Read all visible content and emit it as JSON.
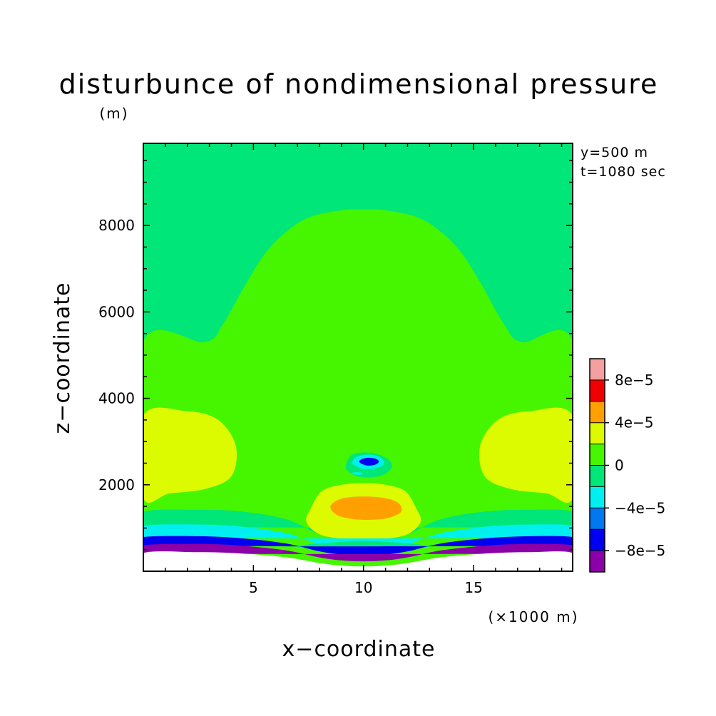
{
  "chart_data": {
    "type": "heatmap",
    "title": "disturbunce of nondimensional pressure",
    "xlabel": "x−coordinate",
    "ylabel": "z−coordinate",
    "x_unit": "(×1000 m)",
    "y_unit": "(m)",
    "annotations": [
      "y=500 m",
      "t=1080 sec"
    ],
    "xlim": [
      0,
      19.5
    ],
    "ylim": [
      0,
      9900
    ],
    "x_ticks": [
      5,
      10,
      15
    ],
    "x_tick_labels": [
      "5",
      "10",
      "15"
    ],
    "y_ticks": [
      2000,
      4000,
      6000,
      8000
    ],
    "y_tick_labels": [
      "2000",
      "4000",
      "6000",
      "8000"
    ],
    "legend": {
      "position": "right",
      "bounds": [
        -0.0001,
        -8e-05,
        -6e-05,
        -4e-05,
        -2e-05,
        0,
        2e-05,
        4e-05,
        6e-05,
        8e-05,
        0.0001
      ],
      "colors": [
        "#8c00a8",
        "#0000f0",
        "#0078f0",
        "#00f0f0",
        "#00e678",
        "#46f500",
        "#dcfa00",
        "#ffa000",
        "#f00000",
        "#f5a0a0"
      ],
      "labels": [
        {
          "value": -8e-05,
          "text": "−8e−5"
        },
        {
          "value": -4e-05,
          "text": "−4e−5"
        },
        {
          "value": 0,
          "text": "0"
        },
        {
          "value": 4e-05,
          "text": "4e−5"
        },
        {
          "value": 8e-05,
          "text": "8e−5"
        }
      ]
    },
    "regions": [
      {
        "name": "upper-cyan",
        "level": -2e-05,
        "points": [
          [
            0,
            5300
          ],
          [
            0,
            9900
          ],
          [
            19.5,
            9900
          ],
          [
            19.5,
            5300
          ]
        ]
      },
      {
        "name": "green-dome",
        "level": 0,
        "points": [
          [
            0,
            1300
          ],
          [
            0,
            5300
          ],
          [
            2.8,
            5300
          ],
          [
            3.6,
            5700
          ],
          [
            4.6,
            6600
          ],
          [
            5.6,
            7400
          ],
          [
            6.6,
            7900
          ],
          [
            7.6,
            8200
          ],
          [
            9.0,
            8350
          ],
          [
            10.0,
            8370
          ],
          [
            11.0,
            8350
          ],
          [
            12.4,
            8200
          ],
          [
            13.4,
            7900
          ],
          [
            14.4,
            7400
          ],
          [
            15.4,
            6600
          ],
          [
            16.4,
            5700
          ],
          [
            17.2,
            5300
          ],
          [
            19.5,
            5300
          ],
          [
            19.5,
            1300
          ]
        ]
      },
      {
        "name": "left-lime",
        "level": 2e-05,
        "points": [
          [
            0,
            1700
          ],
          [
            0,
            3600
          ],
          [
            2.0,
            3700
          ],
          [
            3.4,
            3500
          ],
          [
            4.2,
            2900
          ],
          [
            4.0,
            2200
          ],
          [
            2.8,
            1900
          ],
          [
            1.2,
            1800
          ]
        ]
      },
      {
        "name": "right-lime",
        "level": 2e-05,
        "points": [
          [
            19.5,
            1700
          ],
          [
            19.5,
            3600
          ],
          [
            17.5,
            3700
          ],
          [
            16.1,
            3500
          ],
          [
            15.3,
            2900
          ],
          [
            15.5,
            2200
          ],
          [
            16.7,
            1900
          ],
          [
            18.3,
            1800
          ]
        ]
      },
      {
        "name": "lower-cyan-band",
        "level": -2e-05,
        "points": [
          [
            0,
            1050
          ],
          [
            0,
            1380
          ],
          [
            2.5,
            1420
          ],
          [
            4.5,
            1380
          ],
          [
            6.5,
            1200
          ],
          [
            8.0,
            850
          ],
          [
            9.0,
            740
          ],
          [
            10.0,
            720
          ],
          [
            11.0,
            740
          ],
          [
            12.0,
            850
          ],
          [
            13.5,
            1200
          ],
          [
            15.5,
            1380
          ],
          [
            17.5,
            1420
          ],
          [
            19.5,
            1380
          ],
          [
            19.5,
            1050
          ]
        ]
      },
      {
        "name": "center-lime-core",
        "level": 2e-05,
        "points": [
          [
            7.6,
            1450
          ],
          [
            7.4,
            1150
          ],
          [
            7.9,
            880
          ],
          [
            8.8,
            760
          ],
          [
            10.0,
            740
          ],
          [
            11.2,
            760
          ],
          [
            12.1,
            880
          ],
          [
            12.6,
            1150
          ],
          [
            12.4,
            1450
          ],
          [
            11.9,
            1850
          ],
          [
            11.0,
            2000
          ],
          [
            10.0,
            2040
          ],
          [
            9.0,
            2000
          ],
          [
            8.1,
            1850
          ]
        ]
      },
      {
        "name": "center-yellow-core",
        "level": 4e-05,
        "points": [
          [
            8.5,
            1500
          ],
          [
            8.8,
            1300
          ],
          [
            9.5,
            1210
          ],
          [
            10.3,
            1190
          ],
          [
            11.1,
            1230
          ],
          [
            11.7,
            1370
          ],
          [
            11.6,
            1570
          ],
          [
            11.0,
            1690
          ],
          [
            10.0,
            1730
          ],
          [
            9.0,
            1680
          ]
        ]
      },
      {
        "name": "blue-band",
        "level": -4e-05,
        "points": [
          [
            0,
            790
          ],
          [
            0,
            1050
          ],
          [
            2.5,
            1080
          ],
          [
            4.5,
            1030
          ],
          [
            6.5,
            880
          ],
          [
            8.0,
            620
          ],
          [
            9.0,
            530
          ],
          [
            10.0,
            510
          ],
          [
            11.0,
            530
          ],
          [
            12.0,
            620
          ],
          [
            13.5,
            880
          ],
          [
            15.5,
            1030
          ],
          [
            17.5,
            1080
          ],
          [
            19.5,
            1050
          ],
          [
            19.5,
            790
          ]
        ]
      },
      {
        "name": "cyan-inner-band",
        "level": -2e-05,
        "points": [
          [
            7.0,
            560
          ],
          [
            8.0,
            580
          ],
          [
            9.0,
            540
          ],
          [
            10.0,
            520
          ],
          [
            11.0,
            540
          ],
          [
            12.0,
            580
          ],
          [
            13.0,
            560
          ],
          [
            12.5,
            620
          ],
          [
            11.0,
            680
          ],
          [
            10.0,
            700
          ],
          [
            9.0,
            680
          ],
          [
            7.5,
            620
          ]
        ]
      },
      {
        "name": "dark-blue-band",
        "level": -8e-05,
        "points": [
          [
            0,
            600
          ],
          [
            0,
            790
          ],
          [
            2.5,
            810
          ],
          [
            4.5,
            760
          ],
          [
            6.5,
            640
          ],
          [
            8.0,
            460
          ],
          [
            9.0,
            390
          ],
          [
            10.0,
            370
          ],
          [
            11.0,
            390
          ],
          [
            12.0,
            460
          ],
          [
            13.5,
            640
          ],
          [
            15.5,
            760
          ],
          [
            17.5,
            810
          ],
          [
            19.5,
            790
          ],
          [
            19.5,
            600
          ]
        ]
      },
      {
        "name": "purple-band",
        "level": -0.0001,
        "points": [
          [
            0,
            420
          ],
          [
            0,
            600
          ],
          [
            2.5,
            630
          ],
          [
            4.5,
            590
          ],
          [
            6.5,
            480
          ],
          [
            8.0,
            320
          ],
          [
            9.0,
            250
          ],
          [
            10.0,
            230
          ],
          [
            11.0,
            250
          ],
          [
            12.0,
            320
          ],
          [
            13.5,
            480
          ],
          [
            15.5,
            590
          ],
          [
            17.5,
            630
          ],
          [
            19.5,
            600
          ],
          [
            19.5,
            420
          ]
        ]
      },
      {
        "name": "terrain-gap",
        "level": null,
        "points": [
          [
            0,
            0
          ],
          [
            0,
            420
          ],
          [
            2.5,
            440
          ],
          [
            4.5,
            410
          ],
          [
            6.5,
            320
          ],
          [
            8.0,
            190
          ],
          [
            9.0,
            130
          ],
          [
            10.0,
            110
          ],
          [
            11.0,
            130
          ],
          [
            12.0,
            190
          ],
          [
            13.5,
            320
          ],
          [
            15.5,
            410
          ],
          [
            17.5,
            440
          ],
          [
            19.5,
            420
          ],
          [
            19.5,
            0
          ]
        ]
      },
      {
        "name": "center-cyan-cell",
        "level": -2e-05,
        "points": [
          [
            9.2,
            2400
          ],
          [
            9.6,
            2220
          ],
          [
            10.2,
            2170
          ],
          [
            10.9,
            2230
          ],
          [
            11.3,
            2430
          ],
          [
            11.0,
            2630
          ],
          [
            10.3,
            2740
          ],
          [
            9.5,
            2700
          ]
        ]
      },
      {
        "name": "center-lightblue-cell",
        "level": -4e-05,
        "points": [
          [
            9.5,
            2500
          ],
          [
            9.9,
            2380
          ],
          [
            10.4,
            2370
          ],
          [
            10.9,
            2460
          ],
          [
            10.8,
            2620
          ],
          [
            10.3,
            2700
          ],
          [
            9.7,
            2650
          ]
        ]
      },
      {
        "name": "center-blue-cell",
        "level": -8e-05,
        "points": [
          [
            9.8,
            2540
          ],
          [
            10.1,
            2450
          ],
          [
            10.5,
            2460
          ],
          [
            10.7,
            2540
          ],
          [
            10.5,
            2610
          ],
          [
            10.1,
            2620
          ]
        ]
      },
      {
        "name": "small-lightblue-speck",
        "level": -4e-05,
        "points": [
          [
            9.5,
            2250
          ],
          [
            9.8,
            2230
          ],
          [
            10.0,
            2260
          ],
          [
            9.8,
            2290
          ],
          [
            9.5,
            2280
          ]
        ]
      }
    ]
  }
}
